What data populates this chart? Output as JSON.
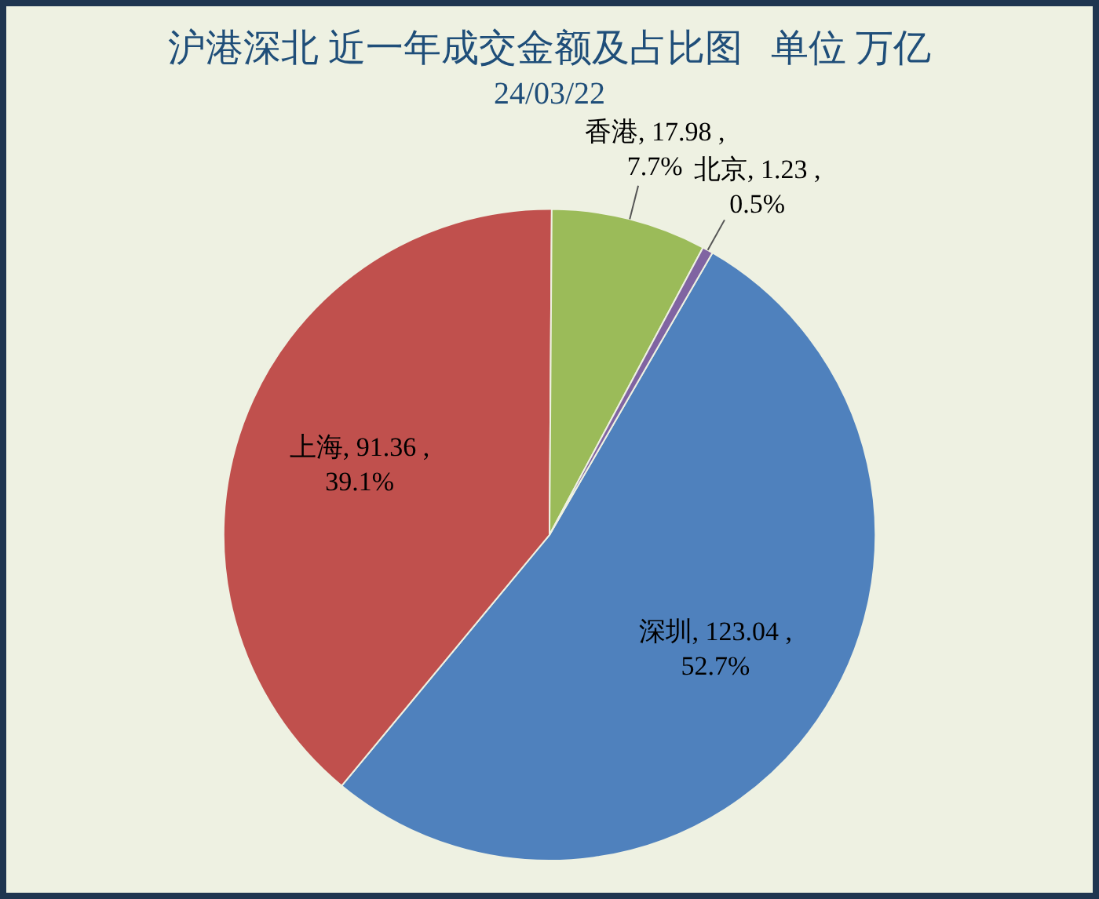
{
  "chart_data": {
    "type": "pie",
    "title": "沪港深北 近一年成交金额及占比图   单位 万亿",
    "subtitle": "24/03/22",
    "categories": [
      "深圳",
      "上海",
      "香港",
      "北京"
    ],
    "values": [
      123.04,
      91.36,
      17.98,
      1.23
    ],
    "colors": [
      "#4f81bd",
      "#c0504d",
      "#9bbb59",
      "#8064a2"
    ],
    "value_labels": [
      "123.04 ,\n52.7%",
      "91.36 ,\n39.1%",
      "17.98 ,\n7.7%",
      "1.23 ,\n0.5%"
    ],
    "legend": false
  }
}
